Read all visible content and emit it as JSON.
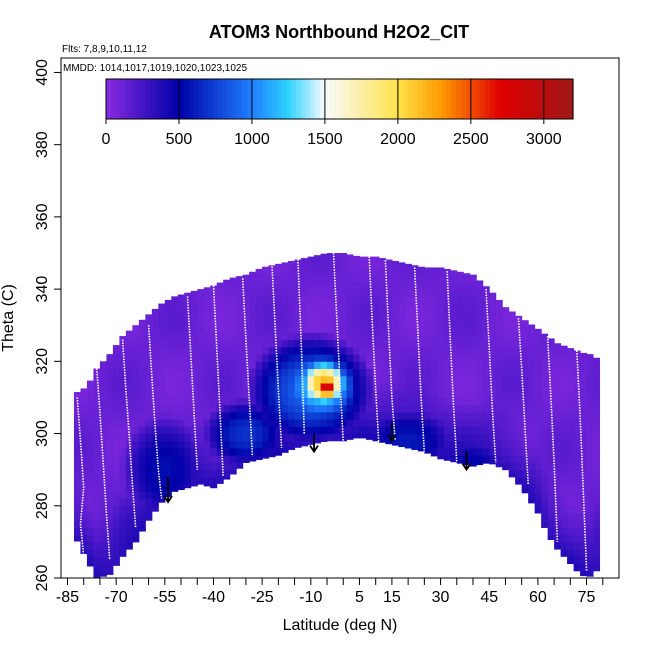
{
  "chart_data": {
    "type": "heatmap",
    "title": "ATOM3 Northbound H2O2_CIT",
    "flights_label": "Flts: 7,8,9,10,11,12",
    "mmdd_label": "MMDD: 1014,1017,1019,1020,1023,1025",
    "xlabel": "Latitude (deg N)",
    "ylabel": "Theta (C)",
    "xlim": [
      -87,
      85
    ],
    "ylim": [
      260,
      404
    ],
    "x_ticks": [
      -85,
      -70,
      -55,
      -40,
      -25,
      -10,
      5,
      15,
      30,
      45,
      60,
      75
    ],
    "x_tick_labels": [
      "-85",
      "-70",
      "-55",
      "-40",
      "-25",
      "-10",
      "5",
      "15",
      "30",
      "45",
      "60",
      "75"
    ],
    "y_ticks": [
      260,
      280,
      300,
      320,
      340,
      360,
      380,
      400
    ],
    "y_tick_labels": [
      "260",
      "280",
      "300",
      "320",
      "340",
      "360",
      "380",
      "400"
    ],
    "colorbar": {
      "range": [
        0,
        3200
      ],
      "ticks": [
        0,
        500,
        1000,
        1500,
        2000,
        2500,
        3000
      ],
      "tick_labels": [
        "0",
        "500",
        "1000",
        "1500",
        "2000",
        "2500",
        "3000"
      ]
    },
    "colors": {
      "purple": "#8a2be2",
      "navy": "#0000a8",
      "blue": "#1f7fff",
      "sky": "#2fd2ff",
      "pale": "#f8fbff",
      "yellow": "#ffe24a",
      "orange": "#ff9900",
      "red": "#e00000",
      "darkred": "#a01818"
    },
    "coverage_boundary": {
      "lat": [
        -83,
        -79,
        -76,
        -72,
        -68,
        -64,
        -60,
        -56,
        -52,
        -48,
        -44,
        -40,
        -35,
        -30,
        -25,
        -20,
        -15,
        -10,
        -5,
        0,
        5,
        10,
        15,
        20,
        25,
        30,
        35,
        40,
        45,
        50,
        55,
        60,
        63,
        66,
        69,
        72,
        75,
        77,
        78
      ],
      "top": [
        311,
        313,
        318,
        322,
        327,
        330,
        333,
        336,
        338,
        339,
        340,
        341,
        343,
        344,
        346,
        347,
        348,
        349,
        350,
        350,
        349,
        349,
        348,
        347,
        346,
        346,
        345,
        344,
        340,
        335,
        332,
        329,
        327,
        325,
        324,
        323,
        322,
        322,
        321
      ],
      "bottom": [
        272,
        265,
        260,
        261,
        266,
        270,
        276,
        281,
        284,
        285,
        286,
        285,
        288,
        292,
        293,
        294,
        296,
        297,
        298,
        298,
        299,
        298,
        297,
        296,
        295,
        293,
        292,
        291,
        292,
        290,
        285,
        278,
        272,
        268,
        265,
        262,
        260,
        261,
        262
      ]
    },
    "hotspots": [
      {
        "lat": -5,
        "theta": 313,
        "value": 2900,
        "radius_lat": 4,
        "radius_theta": 4
      },
      {
        "lat": -6,
        "theta": 314,
        "value": 2200,
        "radius_lat": 8,
        "radius_theta": 7
      },
      {
        "lat": -7,
        "theta": 313,
        "value": 1300,
        "radius_lat": 13,
        "radius_theta": 11
      },
      {
        "lat": -10,
        "theta": 312,
        "value": 900,
        "radius_lat": 20,
        "radius_theta": 16
      },
      {
        "lat": -30,
        "theta": 300,
        "value": 700,
        "radius_lat": 14,
        "radius_theta": 10
      },
      {
        "lat": 20,
        "theta": 298,
        "value": 600,
        "radius_lat": 16,
        "radius_theta": 10
      },
      {
        "lat": 40,
        "theta": 290,
        "value": 550,
        "radius_lat": 12,
        "radius_theta": 10
      },
      {
        "lat": -55,
        "theta": 290,
        "value": 550,
        "radius_lat": 14,
        "radius_theta": 16
      }
    ],
    "flight_tracks": [
      {
        "lat": [
          -82,
          -81,
          -80,
          -81,
          -80,
          -79
        ],
        "theta": [
          310,
          298,
          285,
          275,
          266,
          261
        ]
      },
      {
        "lat": [
          -76,
          -75,
          -74,
          -73,
          -72
        ],
        "theta": [
          318,
          306,
          292,
          278,
          265
        ]
      },
      {
        "lat": [
          -68,
          -67,
          -66,
          -65,
          -64
        ],
        "theta": [
          326,
          312,
          300,
          286,
          274
        ]
      },
      {
        "lat": [
          -60,
          -59,
          -58,
          -57,
          -56
        ],
        "theta": [
          330,
          316,
          302,
          290,
          282
        ]
      },
      {
        "lat": [
          -48,
          -47,
          -46,
          -45
        ],
        "theta": [
          338,
          322,
          306,
          290
        ]
      },
      {
        "lat": [
          -40,
          -39,
          -38,
          -37
        ],
        "theta": [
          341,
          324,
          306,
          288
        ]
      },
      {
        "lat": [
          -31,
          -30,
          -29,
          -28
        ],
        "theta": [
          343,
          326,
          310,
          294
        ]
      },
      {
        "lat": [
          -22,
          -21,
          -20,
          -19
        ],
        "theta": [
          347,
          330,
          312,
          296
        ]
      },
      {
        "lat": [
          -14,
          -13,
          -12
        ],
        "theta": [
          349,
          326,
          300
        ]
      },
      {
        "lat": [
          -3,
          -2,
          -1,
          0
        ],
        "theta": [
          350,
          332,
          314,
          298
        ]
      },
      {
        "lat": [
          8,
          9,
          10,
          11
        ],
        "theta": [
          349,
          330,
          312,
          297
        ]
      },
      {
        "lat": [
          13,
          14,
          15,
          16
        ],
        "theta": [
          348,
          328,
          310,
          298
        ]
      },
      {
        "lat": [
          22,
          23,
          24,
          25
        ],
        "theta": [
          346,
          328,
          310,
          295
        ]
      },
      {
        "lat": [
          32,
          33,
          34,
          35
        ],
        "theta": [
          345,
          326,
          308,
          292
        ]
      },
      {
        "lat": [
          44,
          45,
          46,
          47
        ],
        "theta": [
          340,
          324,
          306,
          292
        ]
      },
      {
        "lat": [
          54,
          55,
          56,
          57
        ],
        "theta": [
          332,
          318,
          302,
          286
        ]
      },
      {
        "lat": [
          63,
          64,
          65,
          66
        ],
        "theta": [
          327,
          310,
          292,
          270
        ]
      },
      {
        "lat": [
          72,
          73,
          74,
          75
        ],
        "theta": [
          323,
          305,
          284,
          262
        ]
      }
    ],
    "arrows": [
      {
        "lat": -54,
        "theta_start": 288,
        "theta_end": 281
      },
      {
        "lat": -9,
        "theta_start": 300,
        "theta_end": 295
      },
      {
        "lat": 15,
        "theta_start": 303,
        "theta_end": 298
      },
      {
        "lat": 38,
        "theta_start": 295,
        "theta_end": 290
      }
    ]
  }
}
